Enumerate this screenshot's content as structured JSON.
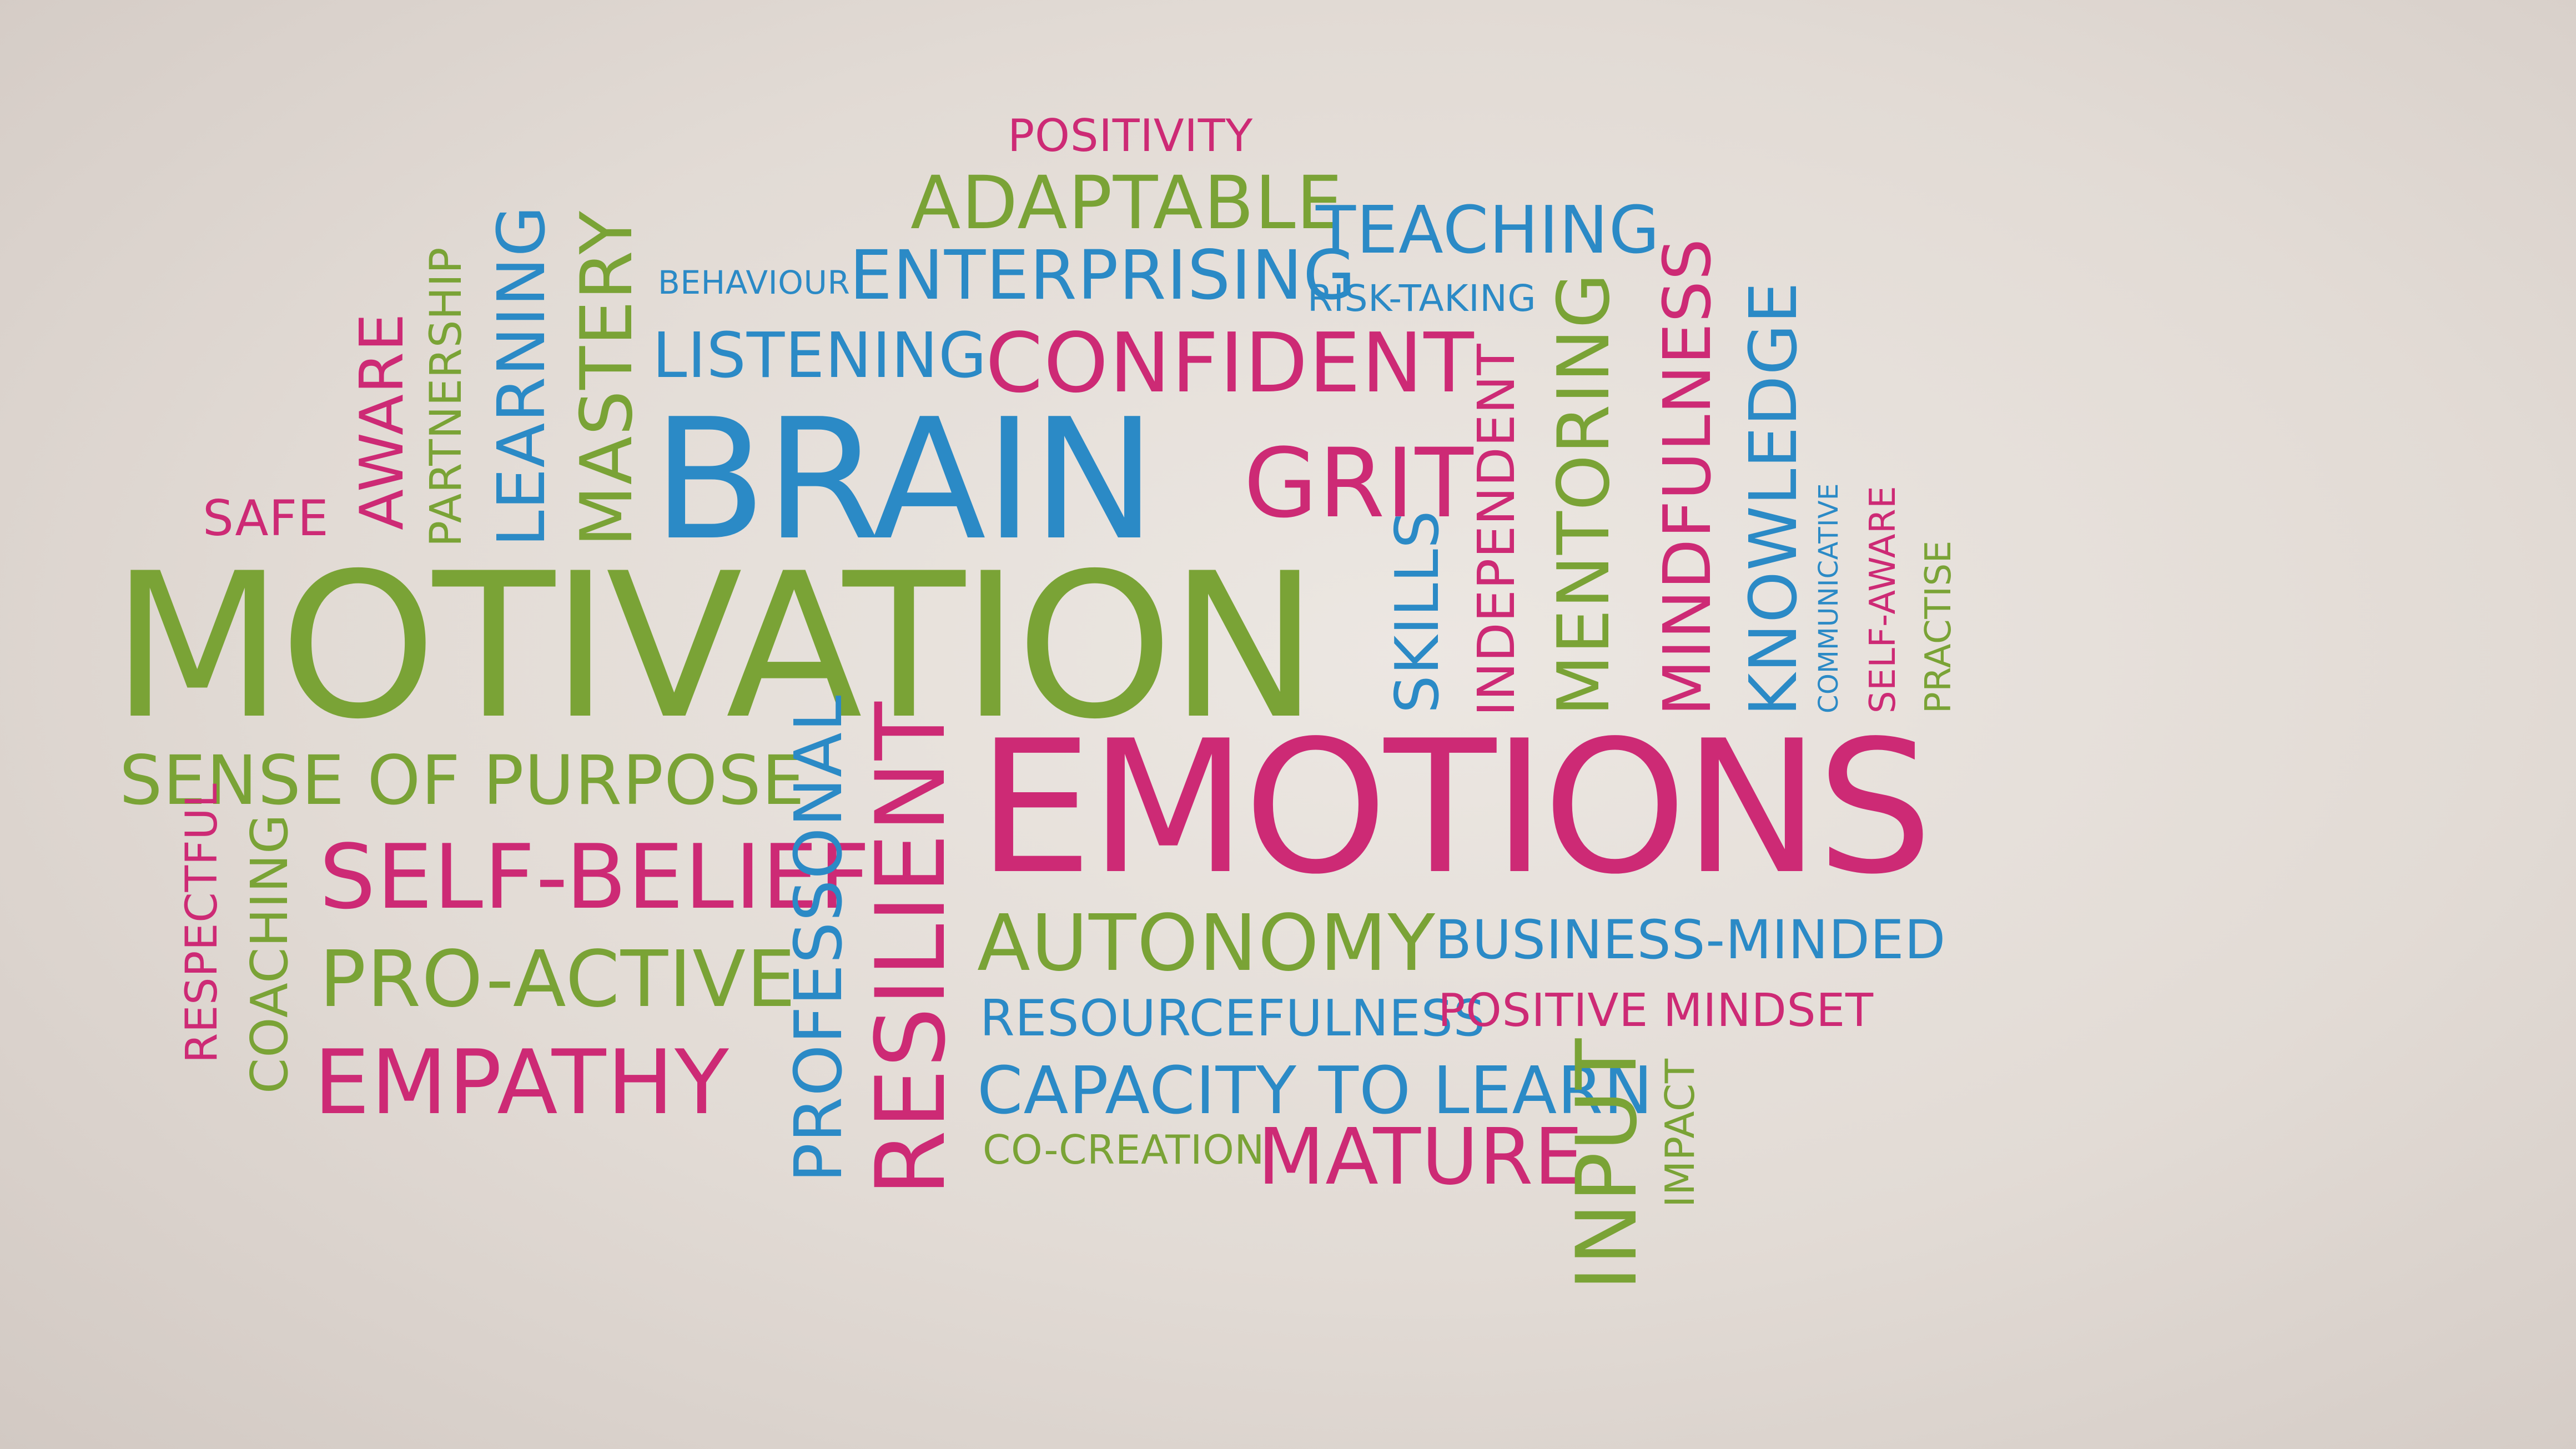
{
  "wall_colors": {
    "green": "#7aa336",
    "pink": "#cd2a75",
    "blue": "#2b8ac6",
    "background": "#e4ddd7"
  },
  "words": {
    "positivity": "POSITIVITY",
    "adaptable": "ADAPTABLE",
    "teaching": "TEACHING",
    "behaviour": "BEHAVIOUR",
    "enterprising": "ENTERPRISING",
    "risk_taking": "RISK-TAKING",
    "listening": "LISTENING",
    "confident": "CONFIDENT",
    "brain": "BRAIN",
    "grit": "GRIT",
    "safe": "SAFE",
    "aware": "AWARE",
    "partnership": "PARTNERSHIP",
    "learning": "LEARNING",
    "mastery": "MASTERY",
    "motivation": "MOTIVATION",
    "skills": "SKILLS",
    "independent": "INDEPENDENT",
    "mentoring": "MENTORING",
    "mindfulness": "MINDFULNESS",
    "knowledge": "KNOWLEDGE",
    "communicative": "COMMUNICATIVE",
    "self_aware": "SELF-AWARE",
    "practise": "PRACTISE",
    "sense_of_purpose": "SENSE OF PURPOSE",
    "emotions": "EMOTIONS",
    "self_belief": "SELF-BELIEF",
    "professonal": "PROFESSONAL",
    "resilient": "RESILIENT",
    "respectful": "RESPECTFUL",
    "coaching": "COACHING",
    "pro_active": "PRO-ACTIVE",
    "empathy": "EMPATHY",
    "autonomy": "AUTONOMY",
    "business_minded": "BUSINESS-MINDED",
    "resourcefulness": "RESOURCEFULNESS",
    "positive_mindset": "POSITIVE MINDSET",
    "capacity_to_learn": "CAPACITY TO LEARN",
    "co_creation": "CO-CREATION",
    "mature": "MATURE",
    "input": "INPUT",
    "impact": "IMPACT"
  }
}
